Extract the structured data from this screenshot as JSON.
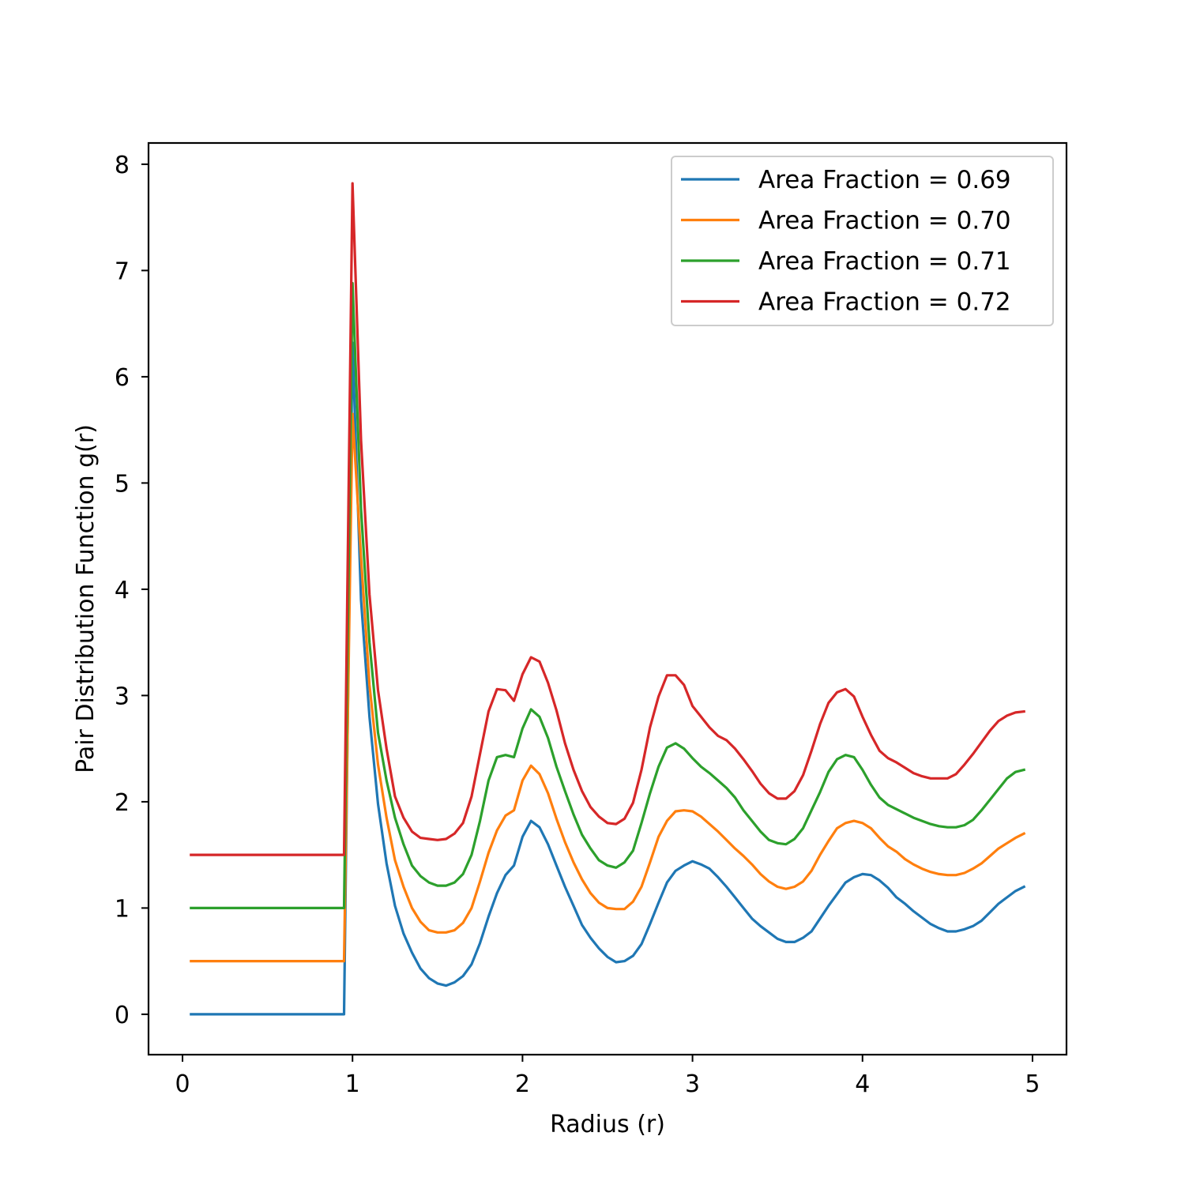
{
  "chart_data": {
    "type": "line",
    "title": "",
    "xlabel": "Radius (r)",
    "ylabel": "Pair Distribution Function g(r)",
    "xlim": [
      -0.2,
      5.2
    ],
    "ylim": [
      -0.38,
      8.2
    ],
    "xticks": [
      0,
      1,
      2,
      3,
      4,
      5
    ],
    "yticks": [
      0,
      1,
      2,
      3,
      4,
      5,
      6,
      7,
      8
    ],
    "grid": false,
    "legend_position": "top-right",
    "series": [
      {
        "name": "Area Fraction = 0.69",
        "color": "#1f77b4",
        "x": [
          0.05,
          0.95,
          1.0,
          1.05,
          1.1,
          1.15,
          1.2,
          1.25,
          1.3,
          1.35,
          1.4,
          1.45,
          1.5,
          1.55,
          1.6,
          1.65,
          1.7,
          1.75,
          1.8,
          1.85,
          1.9,
          1.95,
          2.0,
          2.05,
          2.1,
          2.15,
          2.2,
          2.25,
          2.3,
          2.35,
          2.4,
          2.45,
          2.5,
          2.55,
          2.6,
          2.65,
          2.7,
          2.75,
          2.8,
          2.85,
          2.9,
          2.95,
          3.0,
          3.05,
          3.1,
          3.15,
          3.2,
          3.25,
          3.3,
          3.35,
          3.4,
          3.45,
          3.5,
          3.55,
          3.6,
          3.65,
          3.7,
          3.75,
          3.8,
          3.85,
          3.9,
          3.95,
          4.0,
          4.05,
          4.1,
          4.15,
          4.2,
          4.25,
          4.3,
          4.35,
          4.4,
          4.45,
          4.5,
          4.55,
          4.6,
          4.65,
          4.7,
          4.75,
          4.8,
          4.85,
          4.9,
          4.95
        ],
        "values": [
          0.0,
          0.0,
          6.32,
          3.9,
          2.8,
          1.98,
          1.42,
          1.02,
          0.76,
          0.58,
          0.43,
          0.34,
          0.29,
          0.27,
          0.3,
          0.36,
          0.47,
          0.67,
          0.92,
          1.14,
          1.31,
          1.4,
          1.67,
          1.82,
          1.76,
          1.6,
          1.4,
          1.2,
          1.02,
          0.84,
          0.72,
          0.62,
          0.54,
          0.49,
          0.5,
          0.55,
          0.66,
          0.85,
          1.05,
          1.24,
          1.35,
          1.4,
          1.44,
          1.41,
          1.37,
          1.29,
          1.2,
          1.1,
          1.0,
          0.9,
          0.83,
          0.77,
          0.71,
          0.68,
          0.68,
          0.72,
          0.78,
          0.9,
          1.02,
          1.13,
          1.24,
          1.29,
          1.32,
          1.31,
          1.26,
          1.19,
          1.1,
          1.04,
          0.97,
          0.91,
          0.85,
          0.81,
          0.78,
          0.78,
          0.8,
          0.83,
          0.88,
          0.96,
          1.04,
          1.1,
          1.16,
          1.2
        ]
      },
      {
        "name": "Area Fraction = 0.70",
        "color": "#ff7f0e",
        "x": [
          0.05,
          0.95,
          1.0,
          1.05,
          1.1,
          1.15,
          1.2,
          1.25,
          1.3,
          1.35,
          1.4,
          1.45,
          1.5,
          1.55,
          1.6,
          1.65,
          1.7,
          1.75,
          1.8,
          1.85,
          1.9,
          1.95,
          2.0,
          2.05,
          2.1,
          2.15,
          2.2,
          2.25,
          2.3,
          2.35,
          2.4,
          2.45,
          2.5,
          2.55,
          2.6,
          2.65,
          2.7,
          2.75,
          2.8,
          2.85,
          2.9,
          2.95,
          3.0,
          3.05,
          3.1,
          3.15,
          3.2,
          3.25,
          3.3,
          3.35,
          3.4,
          3.45,
          3.5,
          3.55,
          3.6,
          3.65,
          3.7,
          3.75,
          3.8,
          3.85,
          3.9,
          3.95,
          4.0,
          4.05,
          4.1,
          4.15,
          4.2,
          4.25,
          4.3,
          4.35,
          4.4,
          4.45,
          4.5,
          4.55,
          4.6,
          4.65,
          4.7,
          4.75,
          4.8,
          4.85,
          4.9,
          4.95
        ],
        "values": [
          0.5,
          0.5,
          5.65,
          4.3,
          3.1,
          2.35,
          1.85,
          1.45,
          1.2,
          1.0,
          0.87,
          0.79,
          0.77,
          0.77,
          0.79,
          0.86,
          1.0,
          1.25,
          1.52,
          1.73,
          1.87,
          1.92,
          2.2,
          2.34,
          2.26,
          2.08,
          1.84,
          1.62,
          1.43,
          1.27,
          1.14,
          1.05,
          1.0,
          0.99,
          0.99,
          1.06,
          1.2,
          1.43,
          1.67,
          1.82,
          1.91,
          1.92,
          1.91,
          1.86,
          1.79,
          1.72,
          1.64,
          1.56,
          1.49,
          1.41,
          1.32,
          1.25,
          1.2,
          1.18,
          1.2,
          1.25,
          1.35,
          1.5,
          1.63,
          1.75,
          1.8,
          1.82,
          1.8,
          1.75,
          1.66,
          1.58,
          1.53,
          1.46,
          1.41,
          1.37,
          1.34,
          1.32,
          1.31,
          1.31,
          1.33,
          1.37,
          1.42,
          1.49,
          1.56,
          1.61,
          1.66,
          1.7
        ]
      },
      {
        "name": "Area Fraction = 0.71",
        "color": "#2ca02c",
        "x": [
          0.05,
          0.95,
          1.0,
          1.05,
          1.1,
          1.15,
          1.2,
          1.25,
          1.3,
          1.35,
          1.4,
          1.45,
          1.5,
          1.55,
          1.6,
          1.65,
          1.7,
          1.75,
          1.8,
          1.85,
          1.9,
          1.95,
          2.0,
          2.05,
          2.1,
          2.15,
          2.2,
          2.25,
          2.3,
          2.35,
          2.4,
          2.45,
          2.5,
          2.55,
          2.6,
          2.65,
          2.7,
          2.75,
          2.8,
          2.85,
          2.9,
          2.95,
          3.0,
          3.05,
          3.1,
          3.15,
          3.2,
          3.25,
          3.3,
          3.35,
          3.4,
          3.45,
          3.5,
          3.55,
          3.6,
          3.65,
          3.7,
          3.75,
          3.8,
          3.85,
          3.9,
          3.95,
          4.0,
          4.05,
          4.1,
          4.15,
          4.2,
          4.25,
          4.3,
          4.35,
          4.4,
          4.45,
          4.5,
          4.55,
          4.6,
          4.65,
          4.7,
          4.75,
          4.8,
          4.85,
          4.9,
          4.95
        ],
        "values": [
          1.0,
          1.0,
          6.88,
          4.75,
          3.5,
          2.65,
          2.2,
          1.85,
          1.6,
          1.4,
          1.3,
          1.24,
          1.21,
          1.21,
          1.24,
          1.32,
          1.5,
          1.82,
          2.2,
          2.42,
          2.44,
          2.42,
          2.69,
          2.87,
          2.8,
          2.6,
          2.33,
          2.1,
          1.88,
          1.69,
          1.56,
          1.45,
          1.4,
          1.38,
          1.43,
          1.54,
          1.8,
          2.08,
          2.33,
          2.51,
          2.55,
          2.5,
          2.41,
          2.33,
          2.27,
          2.2,
          2.13,
          2.04,
          1.92,
          1.82,
          1.72,
          1.64,
          1.61,
          1.6,
          1.65,
          1.75,
          1.92,
          2.09,
          2.28,
          2.4,
          2.44,
          2.42,
          2.3,
          2.16,
          2.04,
          1.97,
          1.93,
          1.89,
          1.85,
          1.82,
          1.79,
          1.77,
          1.76,
          1.76,
          1.78,
          1.83,
          1.92,
          2.02,
          2.12,
          2.22,
          2.28,
          2.3
        ]
      },
      {
        "name": "Area Fraction = 0.72",
        "color": "#d62728",
        "x": [
          0.05,
          0.95,
          1.0,
          1.05,
          1.1,
          1.15,
          1.2,
          1.25,
          1.3,
          1.35,
          1.4,
          1.45,
          1.5,
          1.55,
          1.6,
          1.65,
          1.7,
          1.75,
          1.8,
          1.85,
          1.9,
          1.95,
          2.0,
          2.05,
          2.1,
          2.15,
          2.2,
          2.25,
          2.3,
          2.35,
          2.4,
          2.45,
          2.5,
          2.55,
          2.6,
          2.65,
          2.7,
          2.75,
          2.8,
          2.85,
          2.9,
          2.95,
          3.0,
          3.05,
          3.1,
          3.15,
          3.2,
          3.25,
          3.3,
          3.35,
          3.4,
          3.45,
          3.5,
          3.55,
          3.6,
          3.65,
          3.7,
          3.75,
          3.8,
          3.85,
          3.9,
          3.95,
          4.0,
          4.05,
          4.1,
          4.15,
          4.2,
          4.25,
          4.3,
          4.35,
          4.4,
          4.45,
          4.5,
          4.55,
          4.6,
          4.65,
          4.7,
          4.75,
          4.8,
          4.85,
          4.9,
          4.95
        ],
        "values": [
          1.5,
          1.5,
          7.82,
          5.4,
          3.95,
          3.05,
          2.5,
          2.05,
          1.85,
          1.72,
          1.66,
          1.65,
          1.64,
          1.65,
          1.7,
          1.8,
          2.05,
          2.45,
          2.85,
          3.06,
          3.05,
          2.95,
          3.2,
          3.36,
          3.32,
          3.12,
          2.86,
          2.55,
          2.3,
          2.1,
          1.95,
          1.86,
          1.8,
          1.79,
          1.84,
          1.99,
          2.3,
          2.7,
          2.99,
          3.19,
          3.19,
          3.1,
          2.9,
          2.8,
          2.7,
          2.62,
          2.58,
          2.5,
          2.4,
          2.29,
          2.17,
          2.08,
          2.03,
          2.03,
          2.1,
          2.25,
          2.48,
          2.73,
          2.93,
          3.03,
          3.06,
          2.99,
          2.8,
          2.63,
          2.48,
          2.41,
          2.37,
          2.32,
          2.27,
          2.24,
          2.22,
          2.22,
          2.22,
          2.26,
          2.35,
          2.45,
          2.56,
          2.67,
          2.76,
          2.81,
          2.84,
          2.85
        ]
      }
    ]
  }
}
